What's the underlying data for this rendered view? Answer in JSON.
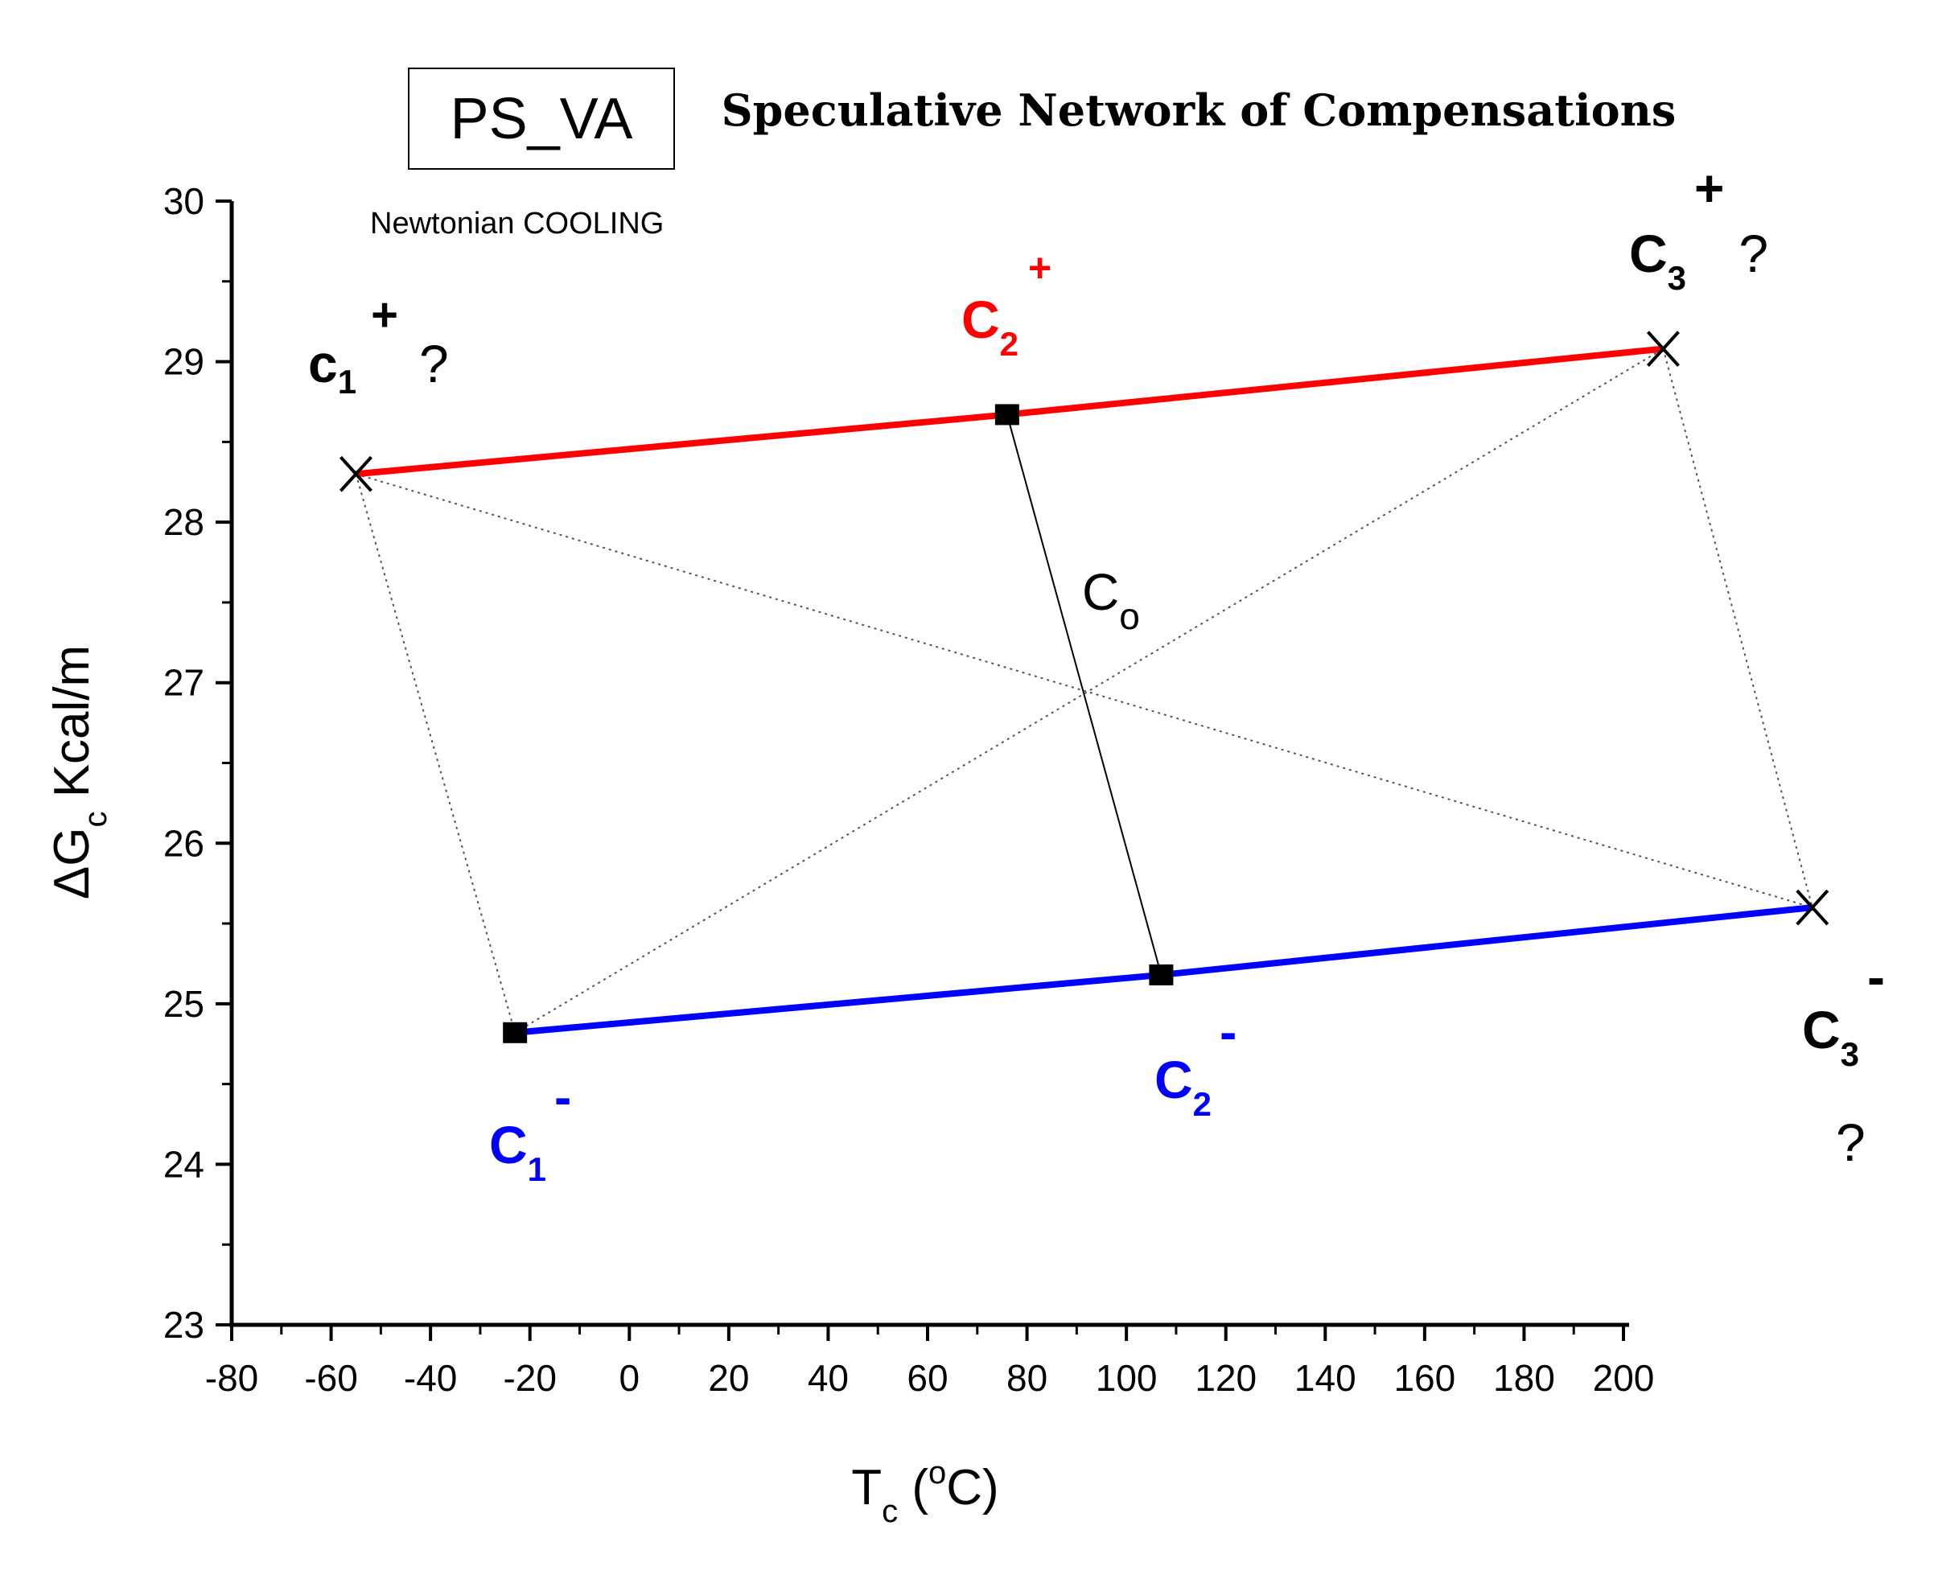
{
  "chart_data": {
    "type": "scatter",
    "title": "Speculative Network of Compensations",
    "boxed_label": "PS_VA",
    "subtitle": "Newtonian COOLING",
    "xlabel": {
      "main": "T",
      "sub": "c",
      "rest": " (",
      "sup": "o",
      "end": "C)"
    },
    "ylabel": {
      "pre": "ΔG",
      "sub": "c",
      "rest": " Kcal/m"
    },
    "xlim": [
      -80,
      200
    ],
    "ylim": [
      23,
      30
    ],
    "xticks": [
      -80,
      -60,
      -40,
      -20,
      0,
      20,
      40,
      60,
      80,
      100,
      120,
      140,
      160,
      180,
      200
    ],
    "yticks": [
      23,
      24,
      25,
      26,
      27,
      28,
      29,
      30
    ],
    "colors": {
      "upper": "#ff0000",
      "lower": "#0000ff",
      "axis": "#000000",
      "dotted": "#555555"
    },
    "points": {
      "c1_plus": {
        "x": -55,
        "y": 28.3,
        "marker": "x"
      },
      "c2_plus": {
        "x": 76,
        "y": 28.67,
        "marker": "square"
      },
      "c3_plus": {
        "x": 208,
        "y": 29.08,
        "marker": "x"
      },
      "c1_minus": {
        "x": -23,
        "y": 24.82,
        "marker": "square"
      },
      "c2_minus": {
        "x": 107,
        "y": 25.18,
        "marker": "square"
      },
      "c3_minus": {
        "x": 238,
        "y": 25.6,
        "marker": "x"
      }
    },
    "series": [
      {
        "name": "upper",
        "color": "#ff0000",
        "points": [
          "c1_plus",
          "c2_plus",
          "c3_plus"
        ]
      },
      {
        "name": "lower",
        "color": "#0000ff",
        "points": [
          "c1_minus",
          "c2_minus",
          "c3_minus"
        ]
      }
    ],
    "connector": [
      "c2_plus",
      "c2_minus"
    ],
    "dotted_lines": [
      [
        "c1_plus",
        "c1_minus"
      ],
      [
        "c3_plus",
        "c3_minus"
      ],
      [
        "c1_plus",
        "c3_minus"
      ],
      [
        "c1_minus",
        "c3_plus"
      ]
    ],
    "annotations": {
      "c1_plus": {
        "letter": "c",
        "sub": "1",
        "sup": "+",
        "q": "?"
      },
      "c2_plus": {
        "letter": "C",
        "sub": "2",
        "sup": "+"
      },
      "c3_plus": {
        "letter": "C",
        "sub": "3",
        "sup": "+",
        "q": "?"
      },
      "c1_minus": {
        "letter": "C",
        "sub": "1",
        "sup": "-"
      },
      "c2_minus": {
        "letter": "C",
        "sub": "2",
        "sup": "-"
      },
      "c3_minus": {
        "letter": "C",
        "sub": "3",
        "sup": "-",
        "q": "?"
      },
      "c_o": {
        "letter": "C",
        "sub": "o"
      }
    }
  }
}
